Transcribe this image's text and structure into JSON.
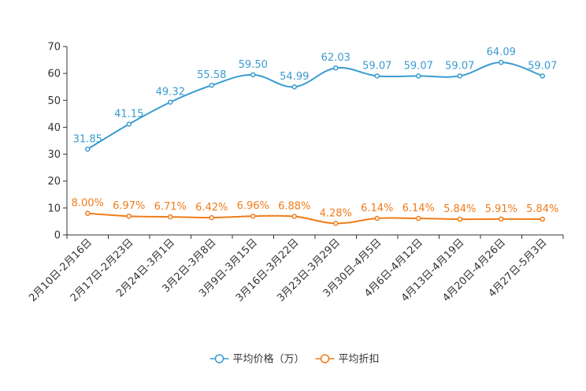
{
  "chart_data": {
    "type": "line",
    "title": "",
    "xlabel": "",
    "ylabel": "",
    "ylim": [
      0,
      70
    ],
    "yticks": [
      0,
      10,
      20,
      30,
      40,
      50,
      60,
      70
    ],
    "grid": false,
    "legend_position": "bottom-center",
    "categories": [
      "2月10日-2月16日",
      "2月17日-2月23日",
      "2月24日-3月1日",
      "3月2日-3月8日",
      "3月9日-3月15日",
      "3月16日-3月22日",
      "3月23日-3月29日",
      "3月30日-4月5日",
      "4月6日-4月12日",
      "4月13日-4月19日",
      "4月20日-4月26日",
      "4月27日-5月3日"
    ],
    "series": [
      {
        "name": "平均价格（万）",
        "color": "#3a9bd0",
        "values": [
          31.85,
          41.15,
          49.32,
          55.58,
          59.5,
          54.99,
          62.03,
          59.07,
          59.07,
          59.07,
          64.09,
          59.07
        ],
        "labels": [
          "31.85",
          "41.15",
          "49.32",
          "55.58",
          "59.50",
          "54.99",
          "62.03",
          "59.07",
          "59.07",
          "59.07",
          "64.09",
          "59.07"
        ]
      },
      {
        "name": "平均折扣",
        "color": "#f07c1a",
        "values": [
          8.0,
          6.97,
          6.71,
          6.42,
          6.96,
          6.88,
          4.28,
          6.14,
          6.14,
          5.84,
          5.91,
          5.84
        ],
        "labels": [
          "8.00%",
          "6.97%",
          "6.71%",
          "6.42%",
          "6.96%",
          "6.88%",
          "4.28%",
          "6.14%",
          "6.14%",
          "5.84%",
          "5.91%",
          "5.84%"
        ]
      }
    ]
  }
}
